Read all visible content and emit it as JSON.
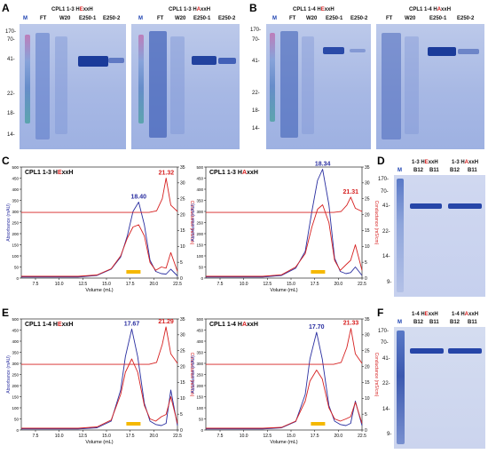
{
  "panels": {
    "A": {
      "letter": "A",
      "gel1_title_pre": "CPL1 1-3 H",
      "gel1_title_hl": "E",
      "gel1_title_post": "xxH",
      "gel2_title_pre": "CPL1 1-3 H",
      "gel2_title_hl": "A",
      "gel2_title_post": "xxH",
      "lanes": [
        "M",
        "FT",
        "W20",
        "E250-1",
        "E250-2"
      ],
      "mw": [
        "170-",
        "70-",
        "41-",
        "22-",
        "18-",
        "14-"
      ]
    },
    "B": {
      "letter": "B",
      "gel1_title_pre": "CPL1 1-4 H",
      "gel1_title_hl": "E",
      "gel1_title_post": "xxH",
      "gel2_title_pre": "CPL1 1-4 H",
      "gel2_title_hl": "A",
      "gel2_title_post": "xxH",
      "lanes": [
        "M",
        "FT",
        "W20",
        "E250-1",
        "E250-2"
      ],
      "mw": [
        "170-",
        "70-",
        "41-",
        "22-",
        "18-",
        "14-"
      ]
    },
    "C": {
      "letter": "C"
    },
    "D": {
      "letter": "D",
      "title1_pre": "1-3 H",
      "title1_hl": "E",
      "title1_post": "xxH",
      "title2_pre": "1-3 H",
      "title2_hl": "A",
      "title2_post": "xxH",
      "lanes": [
        "M",
        "B12",
        "B11",
        "B12",
        "B11"
      ],
      "mw": [
        "170-",
        "70-",
        "41-",
        "22-",
        "14-",
        "9-"
      ]
    },
    "E": {
      "letter": "E"
    },
    "F": {
      "letter": "F",
      "title1_pre": "1-4 H",
      "title1_hl": "E",
      "title1_post": "xxH",
      "title2_pre": "1-4 H",
      "title2_hl": "A",
      "title2_post": "xxH",
      "lanes": [
        "M",
        "B12",
        "B11",
        "B12",
        "B11"
      ],
      "mw": [
        "170-",
        "70-",
        "41-",
        "22-",
        "14-",
        "9-"
      ]
    }
  },
  "colors": {
    "absorbance": "#2a2fa0",
    "conductivity": "#d62020",
    "fraction_bar": "#f5b800"
  },
  "chart_data": [
    {
      "type": "line",
      "panel": "C",
      "title_pre": "CPL1 1-3 H",
      "title_hl": "E",
      "title_post": "xxH",
      "xlabel": "Volume (mL)",
      "ylabel": "Absorbance (mAU)",
      "y2label": "Conductance (mS/cm)",
      "xlim": [
        6,
        22.5
      ],
      "ylim": [
        0,
        500
      ],
      "y2lim": [
        0,
        35
      ],
      "xticks": [
        "7.5",
        "10.0",
        "12.5",
        "15.0",
        "17.5",
        "20.0",
        "22.5"
      ],
      "yticks": [
        "0",
        "50",
        "100",
        "150",
        "200",
        "250",
        "300",
        "350",
        "400",
        "450",
        "500"
      ],
      "y2ticks": [
        "0",
        "5",
        "10",
        "15",
        "20",
        "25",
        "30",
        "35"
      ],
      "peak_abs": "18.40",
      "peak_cond": "21.32",
      "series": [
        {
          "x": [
            6,
            12,
            14,
            15.5,
            16.5,
            17.2,
            17.8,
            18.4,
            19.0,
            19.6,
            20.2,
            20.8,
            21.3,
            21.8,
            22.5
          ],
          "y": [
            5,
            5,
            12,
            40,
            95,
            190,
            300,
            342,
            240,
            80,
            30,
            20,
            18,
            40,
            10
          ]
        },
        {
          "x": [
            6,
            12,
            14,
            15.5,
            16.5,
            17.2,
            17.8,
            18.4,
            19.0,
            19.6,
            20.2,
            20.8,
            21.3,
            21.8,
            22.5
          ],
          "y": [
            8,
            8,
            14,
            42,
            100,
            180,
            230,
            240,
            190,
            70,
            35,
            50,
            45,
            115,
            30
          ]
        },
        {
          "x": [
            6,
            19.5,
            20.3,
            20.9,
            21.3,
            21.8,
            22.5
          ],
          "y": [
            20.7,
            20.7,
            21.2,
            25,
            31.5,
            23,
            21
          ]
        }
      ]
    },
    {
      "type": "line",
      "panel": "C2",
      "title_pre": "CPL1 1-3 H",
      "title_hl": "A",
      "title_post": "xxH",
      "xlabel": "Volume (mL)",
      "ylabel": "Absorbance (mAU)",
      "y2label": "Conductance (mS/cm)",
      "xlim": [
        6,
        22.5
      ],
      "ylim": [
        0,
        500
      ],
      "y2lim": [
        0,
        35
      ],
      "xticks": [
        "7.5",
        "10.0",
        "12.5",
        "15.0",
        "17.5",
        "20.0",
        "22.5"
      ],
      "yticks": [
        "0",
        "50",
        "100",
        "150",
        "200",
        "250",
        "300",
        "350",
        "400",
        "450",
        "500"
      ],
      "y2ticks": [
        "0",
        "5",
        "10",
        "15",
        "20",
        "25",
        "30",
        "35"
      ],
      "peak_abs": "18.34",
      "peak_cond": "21.31",
      "series": [
        {
          "x": [
            6,
            12,
            14,
            15.5,
            16.5,
            17.2,
            17.8,
            18.34,
            19.0,
            19.6,
            20.2,
            20.8,
            21.3,
            21.8,
            22.5
          ],
          "y": [
            5,
            5,
            12,
            45,
            120,
            300,
            440,
            490,
            330,
            90,
            30,
            20,
            25,
            50,
            12
          ]
        },
        {
          "x": [
            6,
            12,
            14,
            15.5,
            16.5,
            17.2,
            17.8,
            18.34,
            19.0,
            19.6,
            20.2,
            20.8,
            21.3,
            21.8,
            22.5
          ],
          "y": [
            8,
            8,
            15,
            50,
            110,
            230,
            310,
            330,
            250,
            80,
            35,
            60,
            80,
            150,
            35
          ]
        },
        {
          "x": [
            6,
            19.5,
            20.3,
            20.9,
            21.31,
            21.8,
            22.5
          ],
          "y": [
            20.7,
            20.7,
            21,
            23,
            25.5,
            22,
            21
          ]
        }
      ]
    },
    {
      "type": "line",
      "panel": "E",
      "title_pre": "CPL1 1-4 H",
      "title_hl": "E",
      "title_post": "xxH",
      "xlabel": "Volume (mL)",
      "ylabel": "Absorbance (mAU)",
      "y2label": "Conductance (mS/cm)",
      "xlim": [
        6,
        22.5
      ],
      "ylim": [
        0,
        500
      ],
      "y2lim": [
        0,
        35
      ],
      "xticks": [
        "7.5",
        "10.0",
        "12.5",
        "15.0",
        "17.5",
        "20.0",
        "22.5"
      ],
      "yticks": [
        "0",
        "50",
        "100",
        "150",
        "200",
        "250",
        "300",
        "350",
        "400",
        "450",
        "500"
      ],
      "y2ticks": [
        "0",
        "5",
        "10",
        "15",
        "20",
        "25",
        "30",
        "35"
      ],
      "peak_abs": "17.67",
      "peak_cond": "21.29",
      "series": [
        {
          "x": [
            6,
            12,
            14,
            15.5,
            16.5,
            17.0,
            17.67,
            18.3,
            19.0,
            19.6,
            20.2,
            20.8,
            21.3,
            21.8,
            22.5
          ],
          "y": [
            5,
            5,
            10,
            40,
            180,
            330,
            455,
            330,
            120,
            40,
            25,
            20,
            30,
            180,
            20
          ]
        },
        {
          "x": [
            6,
            12,
            14,
            15.5,
            16.5,
            17.0,
            17.67,
            18.3,
            19.0,
            19.6,
            20.2,
            20.8,
            21.3,
            21.8,
            22.5
          ],
          "y": [
            8,
            8,
            14,
            45,
            160,
            260,
            320,
            260,
            110,
            50,
            40,
            60,
            70,
            150,
            30
          ]
        },
        {
          "x": [
            6,
            19.5,
            20.3,
            20.9,
            21.29,
            21.8,
            22.5
          ],
          "y": [
            20.7,
            20.7,
            21.3,
            27,
            32.5,
            24,
            21
          ]
        }
      ]
    },
    {
      "type": "line",
      "panel": "E2",
      "title_pre": "CPL1 1-4 H",
      "title_hl": "A",
      "title_post": "xxH",
      "xlabel": "Volume (mL)",
      "ylabel": "Absorbance (mAU)",
      "y2label": "Conductance (mS/cm)",
      "xlim": [
        6,
        22.5
      ],
      "ylim": [
        0,
        500
      ],
      "y2lim": [
        0,
        35
      ],
      "xticks": [
        "7.5",
        "10.0",
        "12.5",
        "15.0",
        "17.5",
        "20.0",
        "22.5"
      ],
      "yticks": [
        "0",
        "50",
        "100",
        "150",
        "200",
        "250",
        "300",
        "350",
        "400",
        "450",
        "500"
      ],
      "y2ticks": [
        "0",
        "5",
        "10",
        "15",
        "20",
        "25",
        "30",
        "35"
      ],
      "peak_abs": "17.70",
      "peak_cond": "21.33",
      "series": [
        {
          "x": [
            6,
            12,
            14,
            15.5,
            16.5,
            17.0,
            17.7,
            18.3,
            19.0,
            19.6,
            20.2,
            20.8,
            21.3,
            21.8,
            22.5
          ],
          "y": [
            5,
            5,
            10,
            38,
            160,
            320,
            440,
            320,
            110,
            40,
            25,
            20,
            30,
            130,
            20
          ]
        },
        {
          "x": [
            6,
            12,
            14,
            15.5,
            16.5,
            17.0,
            17.7,
            18.3,
            19.0,
            19.6,
            20.2,
            20.8,
            21.3,
            21.8,
            22.5
          ],
          "y": [
            8,
            8,
            12,
            40,
            130,
            220,
            270,
            230,
            100,
            50,
            40,
            50,
            60,
            125,
            30
          ]
        },
        {
          "x": [
            6,
            19.5,
            20.3,
            20.9,
            21.33,
            21.8,
            22.5
          ],
          "y": [
            20.7,
            20.7,
            21.3,
            26,
            32,
            24,
            21
          ]
        }
      ]
    }
  ]
}
